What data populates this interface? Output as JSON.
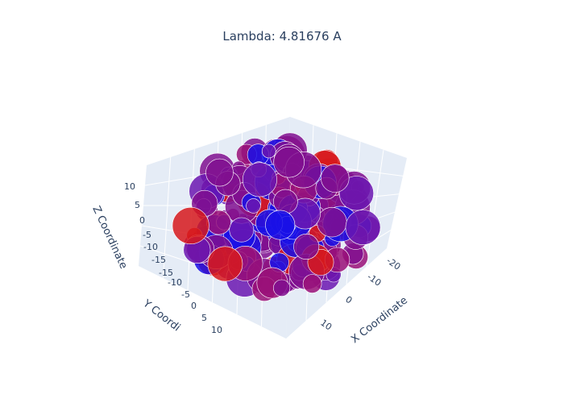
{
  "chart_data": {
    "type": "scatter3d",
    "title": "Lambda: 4.81676 A",
    "axes": {
      "x": {
        "label": "X Coordinate",
        "visible_label": "X Coordinate",
        "ticks": [
          "-20",
          "-10",
          "0",
          "10"
        ]
      },
      "y": {
        "label": "Y Coordinate",
        "visible_label": "Y Coordi",
        "ticks": [
          "-15",
          "-10",
          "-5",
          "0",
          "5",
          "10"
        ]
      },
      "z": {
        "label": "Z Coordinate",
        "ticks": [
          "10",
          "5",
          "0",
          "-5",
          "-10",
          "-15"
        ]
      }
    },
    "colors": {
      "red": "#d7191c",
      "purple": "#800f8f",
      "blue": "#1a10e6",
      "plane": "#e5ecf6",
      "grid": "#ffffff"
    },
    "marker": {
      "opacity": 0.85,
      "line_color": "#ffffff"
    },
    "legend": "none"
  }
}
